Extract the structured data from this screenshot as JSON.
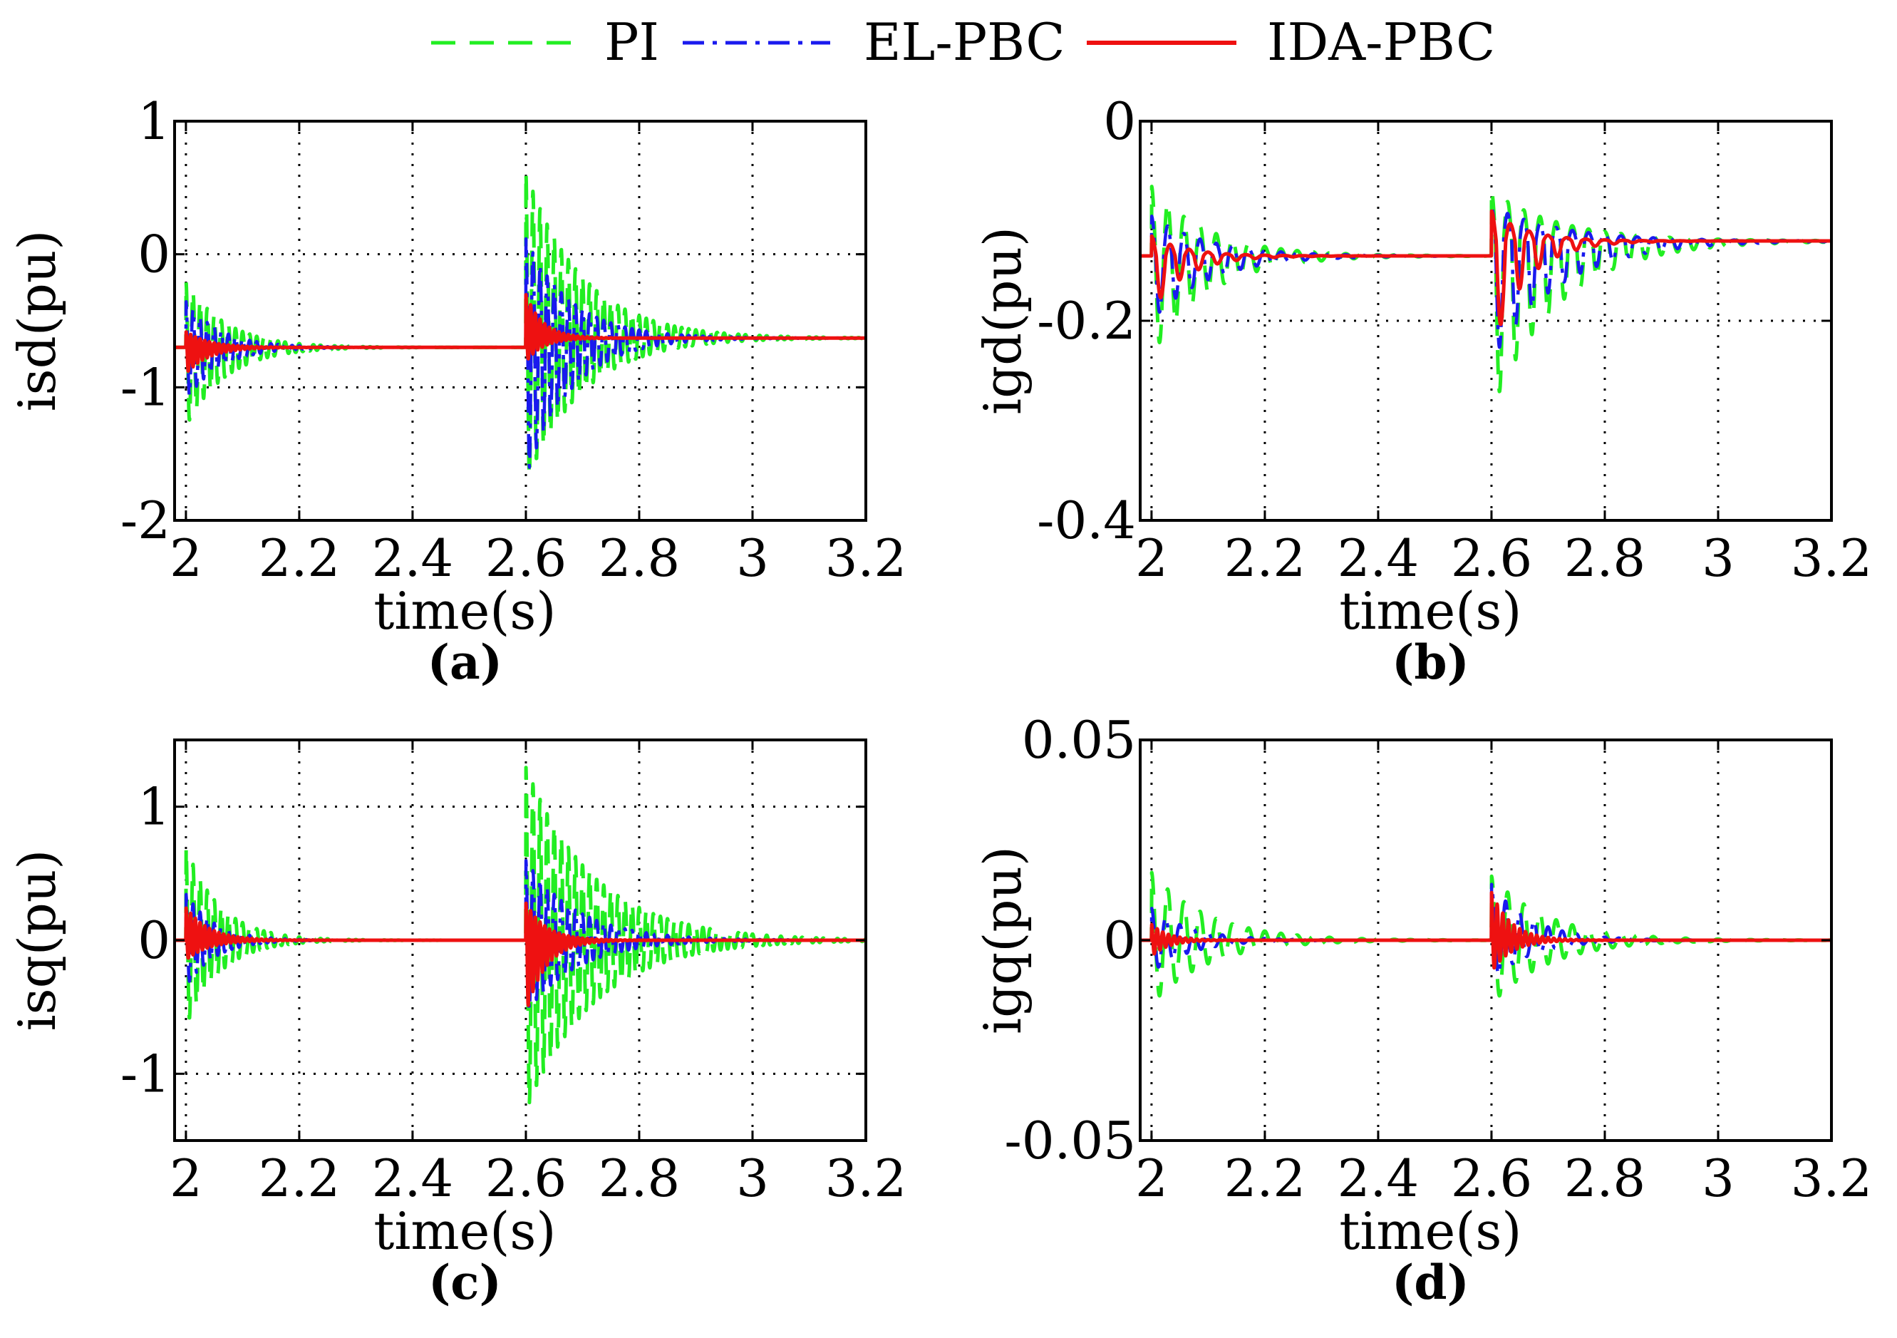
{
  "legend": [
    {
      "name": "PI",
      "color": "#22ee22",
      "dash": "dashed"
    },
    {
      "name": "EL-PBC",
      "color": "#1a1aee",
      "dash": "dashdot"
    },
    {
      "name": "IDA-PBC",
      "color": "#ee1111",
      "dash": "solid"
    }
  ],
  "chart_data": [
    {
      "type": "line",
      "panel": "(a)",
      "xlabel": "time(s)",
      "ylabel": "isd(pu)",
      "xlim": [
        1.98,
        3.2
      ],
      "ylim": [
        -2,
        1
      ],
      "xticks": [
        2,
        2.2,
        2.4,
        2.6,
        2.8,
        3,
        3.2
      ],
      "xtick_labels": [
        "2",
        "2.2",
        "2.4",
        "2.6",
        "2.8",
        "3",
        "3.2"
      ],
      "yticks": [
        1,
        0,
        -1,
        -2
      ],
      "ytick_labels": [
        "1",
        "0",
        "-1",
        "-2"
      ],
      "grid": true,
      "events": [
        2.0,
        2.6
      ],
      "series": [
        {
          "name": "PI",
          "pre": -0.7,
          "post": -0.63,
          "kick1": [
            0.5,
            -0.6
          ],
          "tau1": 0.07,
          "kick2": [
            1.25,
            -1.1
          ],
          "tau2": 0.1,
          "freq": 80
        },
        {
          "name": "EL-PBC",
          "pre": -0.7,
          "post": -0.63,
          "kick1": [
            0.35,
            -0.4
          ],
          "tau1": 0.06,
          "kick2": [
            0.75,
            -1.05
          ],
          "tau2": 0.08,
          "freq": 80
        },
        {
          "name": "IDA-PBC",
          "pre": -0.7,
          "post": -0.63,
          "kick1": [
            0.12,
            -0.2
          ],
          "tau1": 0.04,
          "kick2": [
            0.33,
            -0.18
          ],
          "tau2": 0.03,
          "freq": 120
        }
      ]
    },
    {
      "type": "line",
      "panel": "(b)",
      "xlabel": "time(s)",
      "ylabel": "igd(pu)",
      "xlim": [
        1.98,
        3.2
      ],
      "ylim": [
        -0.4,
        0
      ],
      "xticks": [
        2,
        2.2,
        2.4,
        2.6,
        2.8,
        3,
        3.2
      ],
      "xtick_labels": [
        "2",
        "2.2",
        "2.4",
        "2.6",
        "2.8",
        "3",
        "3.2"
      ],
      "yticks": [
        0,
        -0.2,
        -0.4
      ],
      "ytick_labels": [
        "0",
        "-0.2",
        "-0.4"
      ],
      "grid": true,
      "events": [
        2.0,
        2.6
      ],
      "series": [
        {
          "name": "PI",
          "pre": -0.135,
          "post": -0.12,
          "kick1": [
            0.07,
            -0.1
          ],
          "tau1": 0.1,
          "kick2": [
            0.05,
            -0.17
          ],
          "tau2": 0.12,
          "freq": 35
        },
        {
          "name": "EL-PBC",
          "pre": -0.135,
          "post": -0.12,
          "kick1": [
            0.04,
            -0.065
          ],
          "tau1": 0.1,
          "kick2": [
            0.035,
            -0.12
          ],
          "tau2": 0.12,
          "freq": 35
        },
        {
          "name": "IDA-PBC",
          "pre": -0.135,
          "post": -0.12,
          "kick1": [
            0.02,
            -0.055
          ],
          "tau1": 0.06,
          "kick2": [
            0.03,
            -0.11
          ],
          "tau2": 0.06,
          "freq": 30
        }
      ]
    },
    {
      "type": "line",
      "panel": "(c)",
      "xlabel": "time(s)",
      "ylabel": "isq(pu)",
      "xlim": [
        1.98,
        3.2
      ],
      "ylim": [
        -1.5,
        1.5
      ],
      "xticks": [
        2,
        2.2,
        2.4,
        2.6,
        2.8,
        3,
        3.2
      ],
      "xtick_labels": [
        "2",
        "2.2",
        "2.4",
        "2.6",
        "2.8",
        "3",
        "3.2"
      ],
      "yticks": [
        1,
        0,
        -1
      ],
      "ytick_labels": [
        "1",
        "0",
        "-1"
      ],
      "grid": true,
      "events": [
        2.0,
        2.6
      ],
      "series": [
        {
          "name": "PI",
          "pre": 0,
          "post": 0,
          "kick1": [
            0.7,
            -0.65
          ],
          "tau1": 0.06,
          "kick2": [
            1.3,
            -1.28
          ],
          "tau2": 0.12,
          "freq": 80
        },
        {
          "name": "EL-PBC",
          "pre": 0,
          "post": 0,
          "kick1": [
            0.35,
            -0.35
          ],
          "tau1": 0.05,
          "kick2": [
            0.6,
            -0.55
          ],
          "tau2": 0.09,
          "freq": 80
        },
        {
          "name": "IDA-PBC",
          "pre": 0,
          "post": 0,
          "kick1": [
            0.25,
            -0.15
          ],
          "tau1": 0.04,
          "kick2": [
            0.28,
            -0.55
          ],
          "tau2": 0.035,
          "freq": 120
        }
      ]
    },
    {
      "type": "line",
      "panel": "(d)",
      "xlabel": "time(s)",
      "ylabel": "igq(pu)",
      "xlim": [
        1.98,
        3.2
      ],
      "ylim": [
        -0.05,
        0.05
      ],
      "xticks": [
        2,
        2.2,
        2.4,
        2.6,
        2.8,
        3,
        3.2
      ],
      "xtick_labels": [
        "2",
        "2.2",
        "2.4",
        "2.6",
        "2.8",
        "3",
        "3.2"
      ],
      "yticks": [
        0.05,
        0,
        -0.05
      ],
      "ytick_labels": [
        "0.05",
        "0",
        "-0.05"
      ],
      "grid": true,
      "events": [
        2.0,
        2.6
      ],
      "series": [
        {
          "name": "PI",
          "pre": 0,
          "post": 0,
          "kick1": [
            0.017,
            -0.016
          ],
          "tau1": 0.1,
          "kick2": [
            0.016,
            -0.016
          ],
          "tau2": 0.1,
          "freq": 35
        },
        {
          "name": "EL-PBC",
          "pre": 0,
          "post": 0,
          "kick1": [
            0.008,
            -0.008
          ],
          "tau1": 0.07,
          "kick2": [
            0.014,
            -0.01
          ],
          "tau2": 0.07,
          "freq": 40
        },
        {
          "name": "IDA-PBC",
          "pre": 0,
          "post": 0,
          "kick1": [
            0.004,
            -0.004
          ],
          "tau1": 0.03,
          "kick2": [
            0.012,
            -0.008
          ],
          "tau2": 0.035,
          "freq": 100
        }
      ]
    }
  ]
}
